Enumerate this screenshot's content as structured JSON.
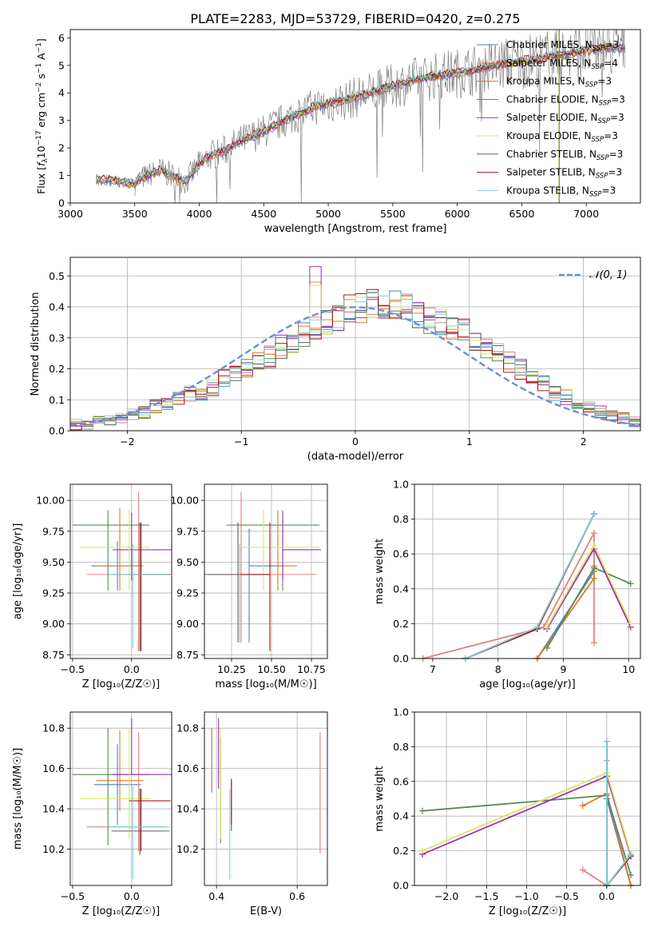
{
  "figure_title": "PLATE=2283, MJD=53729, FIBERID=0420, z=0.275",
  "colors": {
    "Chabrier MILES": "#4a7fd4",
    "Salpeter MILES": "#e08080",
    "Kroupa MILES": "#e07a20",
    "Chabrier ELODIE": "#5a8a5a",
    "Salpeter ELODIE": "#9b30b8",
    "Kroupa ELODIE": "#d8e860",
    "Chabrier STELIB": "#606060",
    "Salpeter STELIB": "#b01010",
    "Kroupa STELIB": "#7fd0d8",
    "data": "#808080",
    "normal": "#6a8fd8",
    "grid": "#b0b0b0"
  },
  "chart_data": [
    {
      "id": "spectrum",
      "type": "line",
      "title": "PLATE=2283, MJD=53729, FIBERID=0420, z=0.275",
      "xlabel": "wavelength [Angstrom, rest frame]",
      "ylabel_parts": [
        "Flux [",
        "f",
        "λ",
        "10",
        "−17",
        " erg cm",
        "−2",
        " s",
        "−1",
        " A",
        "−1",
        "]"
      ],
      "xlim": [
        3000,
        7420
      ],
      "ylim": [
        0,
        6.3
      ],
      "xticks": [
        3000,
        3500,
        4000,
        4500,
        5000,
        5500,
        6000,
        6500,
        7000
      ],
      "yticks": [
        0,
        1,
        2,
        3,
        4,
        5,
        6
      ],
      "legend": [
        {
          "name": "Chabrier MILES",
          "nssp": "3"
        },
        {
          "name": "Salpeter MILES",
          "nssp": "4"
        },
        {
          "name": "Kroupa MILES",
          "nssp": "3"
        },
        {
          "name": "Chabrier ELODIE",
          "nssp": "3"
        },
        {
          "name": "Salpeter ELODIE",
          "nssp": "3"
        },
        {
          "name": "Kroupa ELODIE",
          "nssp": "3"
        },
        {
          "name": "Chabrier STELIB",
          "nssp": "3"
        },
        {
          "name": "Salpeter STELIB",
          "nssp": "3"
        },
        {
          "name": "Kroupa STELIB",
          "nssp": "3"
        }
      ],
      "legend_prefix": "N",
      "legend_sub": "SSP",
      "legend_placement": "top-right",
      "model_continuum": {
        "x": [
          3200,
          3280,
          3500,
          3550,
          3700,
          3800,
          3900,
          4000,
          4100,
          4200,
          4300,
          4500,
          4700,
          4900,
          5100,
          5300,
          5500,
          5700,
          5900,
          6100,
          6300,
          6500,
          6700,
          6900,
          7100,
          7300
        ],
        "y": [
          0.85,
          0.85,
          0.7,
          0.9,
          1.2,
          0.95,
          0.8,
          1.4,
          1.75,
          1.9,
          2.2,
          2.6,
          3.1,
          3.5,
          3.7,
          3.95,
          4.25,
          4.5,
          4.65,
          4.8,
          5.0,
          5.15,
          5.3,
          5.45,
          5.6,
          5.65
        ]
      },
      "observed_range": [
        3500,
        7300
      ],
      "observed_noise_amplitude": 0.9,
      "vertical_line_x": 6790,
      "vertical_line_color": "#808000",
      "grid": false
    },
    {
      "id": "residuals",
      "type": "histogram",
      "xlabel": "(data-model)/error",
      "ylabel": "Normed distribution",
      "xlim": [
        -2.5,
        2.5
      ],
      "ylim": [
        0,
        0.56
      ],
      "xticks": [
        -2,
        -1,
        0,
        1,
        2
      ],
      "yticks": [
        0.0,
        0.1,
        0.2,
        0.3,
        0.4,
        0.5
      ],
      "bin_width": 0.1,
      "bin_start": -2.5,
      "reference_values": [
        0.02,
        0.02,
        0.03,
        0.03,
        0.04,
        0.05,
        0.06,
        0.08,
        0.09,
        0.1,
        0.12,
        0.12,
        0.14,
        0.17,
        0.18,
        0.2,
        0.22,
        0.24,
        0.27,
        0.29,
        0.31,
        0.33,
        0.35,
        0.37,
        0.39,
        0.4,
        0.41,
        0.4,
        0.41,
        0.4,
        0.38,
        0.36,
        0.35,
        0.33,
        0.32,
        0.3,
        0.27,
        0.25,
        0.22,
        0.2,
        0.17,
        0.15,
        0.12,
        0.11,
        0.09,
        0.08,
        0.06,
        0.05,
        0.04,
        0.03
      ],
      "peaks": {
        "Salpeter ELODIE": 0.53,
        "Salpeter MILES": 0.48,
        "Kroupa ELODIE": 0.47
      },
      "normal_label": "𝒩(0, 1)",
      "legend_placement": "top-right",
      "grid": true
    },
    {
      "id": "age_vs_Z",
      "type": "errorbar",
      "xlabel": "Z [log₁₀(Z/Z☉)]",
      "ylabel": "age  [log₁₀(age/yr)]",
      "xlim": [
        -0.52,
        0.34
      ],
      "ylim": [
        8.72,
        10.13
      ],
      "xticks": [
        -0.5,
        0.0
      ],
      "yticks": [
        8.75,
        9.0,
        9.25,
        9.5,
        9.75,
        10.0
      ],
      "grid": true,
      "points": [
        {
          "series": "Chabrier MILES",
          "x": -0.12,
          "xerr": [
            0.22,
            0.2
          ],
          "y": 9.47,
          "yerr": [
            0.2,
            0.2
          ]
        },
        {
          "series": "Salpeter MILES",
          "x": 0.06,
          "xerr": [
            0.44,
            0.23
          ],
          "y": 9.4,
          "yerr": [
            0.62,
            0.67
          ]
        },
        {
          "series": "Kroupa MILES",
          "x": -0.1,
          "xerr": [
            0.2,
            0.2
          ],
          "y": 9.47,
          "yerr": [
            0.2,
            0.47
          ]
        },
        {
          "series": "Chabrier ELODIE",
          "x": -0.2,
          "xerr": [
            0.3,
            0.35
          ],
          "y": 9.8,
          "yerr": [
            0.53,
            0.12
          ]
        },
        {
          "series": "Salpeter ELODIE",
          "x": 0.0,
          "xerr": [
            0.16,
            0.38
          ],
          "y": 9.6,
          "yerr": [
            0.25,
            0.3
          ]
        },
        {
          "series": "Kroupa ELODIE",
          "x": -0.02,
          "xerr": [
            0.42,
            0.18
          ],
          "y": 9.62,
          "yerr": [
            0.35,
            0.3
          ]
        },
        {
          "series": "Chabrier STELIB",
          "x": 0.07,
          "xerr": [
            0.24,
            0.25
          ],
          "y": 9.4,
          "yerr": [
            0.62,
            0.42
          ]
        },
        {
          "series": "Salpeter STELIB",
          "x": 0.08,
          "xerr": [
            0.1,
            0.25
          ],
          "y": 9.4,
          "yerr": [
            0.62,
            0.42
          ]
        },
        {
          "series": "Kroupa STELIB",
          "x": 0.01,
          "xerr": [
            0.2,
            0.31
          ],
          "y": 9.4,
          "yerr": [
            0.6,
            0.25
          ]
        }
      ]
    },
    {
      "id": "age_vs_mass",
      "type": "errorbar",
      "xlabel": "mass [log₁₀(M/M☉)]",
      "ylabel": "",
      "xlim": [
        10.08,
        10.85
      ],
      "ylim": [
        8.72,
        10.13
      ],
      "xticks": [
        10.25,
        10.5,
        10.75
      ],
      "yticks": [
        8.75,
        9.0,
        9.25,
        9.5,
        9.75,
        10.0
      ],
      "grid": true,
      "points": [
        {
          "series": "Chabrier MILES",
          "x": 10.36,
          "xerr": [
            0.0,
            0.22
          ],
          "y": 9.47,
          "yerr": [
            0.62,
            0.3
          ]
        },
        {
          "series": "Salpeter MILES",
          "x": 10.31,
          "xerr": [
            0.21,
            0.47
          ],
          "y": 9.4,
          "yerr": [
            0.55,
            0.67
          ]
        },
        {
          "series": "Kroupa MILES",
          "x": 10.54,
          "xerr": [
            0.0,
            0.12
          ],
          "y": 9.47,
          "yerr": [
            0.2,
            0.45
          ]
        },
        {
          "series": "Chabrier ELODIE",
          "x": 10.57,
          "xerr": [
            0.35,
            0.23
          ],
          "y": 9.8,
          "yerr": [
            0.53,
            0.12
          ]
        },
        {
          "series": "Salpeter ELODIE",
          "x": 10.57,
          "xerr": [
            0.0,
            0.24
          ],
          "y": 9.6,
          "yerr": [
            0.25,
            0.3
          ]
        },
        {
          "series": "Kroupa ELODIE",
          "x": 10.45,
          "xerr": [
            0.15,
            0.35
          ],
          "y": 9.62,
          "yerr": [
            0.35,
            0.3
          ]
        },
        {
          "series": "Chabrier STELIB",
          "x": 10.29,
          "xerr": [
            0.21,
            0.2
          ],
          "y": 9.4,
          "yerr": [
            0.55,
            0.42
          ]
        },
        {
          "series": "Salpeter STELIB",
          "x": 10.49,
          "xerr": [
            0.2,
            0.0
          ],
          "y": 9.4,
          "yerr": [
            0.62,
            0.42
          ]
        },
        {
          "series": "Kroupa STELIB",
          "x": 10.3,
          "xerr": [
            0.0,
            0.0
          ],
          "y": 9.4,
          "yerr": [
            0.55,
            0.25
          ]
        }
      ]
    },
    {
      "id": "weight_vs_age",
      "type": "line",
      "xlabel": "age  [log₁₀(age/yr)]",
      "ylabel": "mass weight",
      "xlim": [
        6.72,
        10.18
      ],
      "ylim": [
        0,
        1.0
      ],
      "xticks": [
        7,
        8,
        9,
        10
      ],
      "yticks": [
        0.0,
        0.2,
        0.4,
        0.6,
        0.8,
        1.0
      ],
      "grid": true,
      "series": [
        {
          "name": "Chabrier MILES",
          "x": [
            8.6,
            9.47
          ],
          "y": [
            0.0,
            0.5
          ]
        },
        {
          "name": "Salpeter MILES",
          "x": [
            6.85,
            8.7,
            9.47,
            9.47
          ],
          "y": [
            0.0,
            0.18,
            0.72,
            0.09
          ]
        },
        {
          "name": "Kroupa MILES",
          "x": [
            8.6,
            9.47,
            9.47
          ],
          "y": [
            0.0,
            0.46,
            0.53
          ]
        },
        {
          "name": "Chabrier ELODIE",
          "x": [
            8.75,
            9.47,
            10.03
          ],
          "y": [
            0.06,
            0.52,
            0.43
          ]
        },
        {
          "name": "Salpeter ELODIE",
          "x": [
            8.75,
            9.47,
            10.03
          ],
          "y": [
            0.17,
            0.63,
            0.18
          ]
        },
        {
          "name": "Kroupa ELODIE",
          "x": [
            8.75,
            9.47,
            10.03
          ],
          "y": [
            0.18,
            0.65,
            0.2
          ]
        },
        {
          "name": "Chabrier STELIB",
          "x": [
            7.5,
            8.6,
            9.47
          ],
          "y": [
            0.0,
            0.17,
            0.83
          ]
        },
        {
          "name": "Salpeter STELIB",
          "x": [
            7.5,
            8.6,
            9.47
          ],
          "y": [
            0.0,
            0.17,
            0.83
          ]
        },
        {
          "name": "Kroupa STELIB",
          "x": [
            7.5,
            8.6,
            9.47
          ],
          "y": [
            0.0,
            0.18,
            0.83
          ]
        }
      ]
    },
    {
      "id": "mass_vs_Z",
      "type": "errorbar",
      "xlabel": "Z [log₁₀(Z/Z☉)]",
      "ylabel": "mass [log₁₀(M/M☉)]",
      "xlim": [
        -0.52,
        0.34
      ],
      "ylim": [
        10.02,
        10.88
      ],
      "xticks": [
        -0.5,
        0.0
      ],
      "yticks": [
        10.2,
        10.4,
        10.6,
        10.8
      ],
      "grid": true,
      "points": [
        {
          "series": "Chabrier MILES",
          "x": -0.12,
          "xerr": [
            0.2,
            0.2
          ],
          "y": 10.52,
          "yerr": [
            0.2,
            0.2
          ]
        },
        {
          "series": "Salpeter MILES",
          "x": 0.06,
          "xerr": [
            0.44,
            0.23
          ],
          "y": 10.31,
          "yerr": [
            0.12,
            0.47
          ]
        },
        {
          "series": "Kroupa MILES",
          "x": -0.1,
          "xerr": [
            0.2,
            0.2
          ],
          "y": 10.54,
          "yerr": [
            0.15,
            0.25
          ]
        },
        {
          "series": "Chabrier ELODIE",
          "x": -0.2,
          "xerr": [
            0.3,
            0.35
          ],
          "y": 10.57,
          "yerr": [
            0.35,
            0.23
          ]
        },
        {
          "series": "Salpeter ELODIE",
          "x": 0.0,
          "xerr": [
            0.16,
            0.38
          ],
          "y": 10.57,
          "yerr": [
            0.0,
            0.28
          ]
        },
        {
          "series": "Kroupa ELODIE",
          "x": -0.02,
          "xerr": [
            0.42,
            0.18
          ],
          "y": 10.45,
          "yerr": [
            0.2,
            0.35
          ]
        },
        {
          "series": "Chabrier STELIB",
          "x": 0.07,
          "xerr": [
            0.24,
            0.25
          ],
          "y": 10.29,
          "yerr": [
            0.12,
            0.21
          ]
        },
        {
          "series": "Salpeter STELIB",
          "x": 0.08,
          "xerr": [
            0.1,
            0.25
          ],
          "y": 10.44,
          "yerr": [
            0.25,
            0.06
          ]
        },
        {
          "series": "Kroupa STELIB",
          "x": 0.01,
          "xerr": [
            0.2,
            0.31
          ],
          "y": 10.31,
          "yerr": [
            0.26,
            0.2
          ]
        }
      ]
    },
    {
      "id": "mass_vs_EBV",
      "type": "errorbar",
      "xlabel": "E(B-V)",
      "ylabel": "",
      "xlim": [
        0.37,
        0.675
      ],
      "ylim": [
        10.02,
        10.88
      ],
      "xticks": [
        0.4,
        0.6
      ],
      "yticks": [
        10.2,
        10.4,
        10.6,
        10.8
      ],
      "grid": true,
      "points": [
        {
          "series": "Chabrier MILES",
          "x": 0.388,
          "y": 10.6,
          "yerr": [
            0.12,
            0.2
          ]
        },
        {
          "series": "Salpeter MILES",
          "x": 0.657,
          "y": 10.5,
          "yerr": [
            0.32,
            0.28
          ]
        },
        {
          "series": "Kroupa MILES",
          "x": 0.388,
          "y": 10.65,
          "yerr": [
            0.15,
            0.14
          ]
        },
        {
          "series": "Chabrier ELODIE",
          "x": 0.41,
          "y": 10.5,
          "yerr": [
            0.27,
            0.25
          ]
        },
        {
          "series": "Salpeter ELODIE",
          "x": 0.405,
          "y": 10.6,
          "yerr": [
            0.1,
            0.25
          ]
        },
        {
          "series": "Kroupa ELODIE",
          "x": 0.41,
          "y": 10.45,
          "yerr": [
            0.2,
            0.35
          ]
        },
        {
          "series": "Chabrier STELIB",
          "x": 0.437,
          "y": 10.4,
          "yerr": [
            0.11,
            0.14
          ]
        },
        {
          "series": "Salpeter STELIB",
          "x": 0.437,
          "y": 10.44,
          "yerr": [
            0.12,
            0.11
          ]
        },
        {
          "series": "Kroupa STELIB",
          "x": 0.433,
          "y": 10.3,
          "yerr": [
            0.25,
            0.2
          ]
        }
      ]
    },
    {
      "id": "weight_vs_Z",
      "type": "line",
      "xlabel": "Z [log₁₀(Z/Z☉)]",
      "ylabel": "mass weight",
      "xlim": [
        -2.4,
        0.42
      ],
      "ylim": [
        0,
        1.0
      ],
      "xticks": [
        -2.0,
        -1.5,
        -1.0,
        -0.5,
        0.0
      ],
      "yticks": [
        0.0,
        0.2,
        0.4,
        0.6,
        0.8,
        1.0
      ],
      "grid": true,
      "series": [
        {
          "name": "Chabrier MILES",
          "x": [
            0.0,
            0.0,
            0.3
          ],
          "y": [
            0.0,
            0.5,
            0.0
          ]
        },
        {
          "name": "Salpeter MILES",
          "x": [
            -0.3,
            0.0,
            0.0,
            0.0
          ],
          "y": [
            0.09,
            0.0,
            0.72,
            0.0
          ]
        },
        {
          "name": "Kroupa MILES",
          "x": [
            -0.3,
            0.0,
            0.3
          ],
          "y": [
            0.46,
            0.53,
            0.0
          ]
        },
        {
          "name": "Chabrier ELODIE",
          "x": [
            -2.3,
            0.0,
            0.3
          ],
          "y": [
            0.43,
            0.52,
            0.06
          ]
        },
        {
          "name": "Salpeter ELODIE",
          "x": [
            -2.3,
            0.0,
            0.3
          ],
          "y": [
            0.18,
            0.63,
            0.17
          ]
        },
        {
          "name": "Kroupa ELODIE",
          "x": [
            -2.3,
            0.0,
            0.3
          ],
          "y": [
            0.2,
            0.65,
            0.18
          ]
        },
        {
          "name": "Chabrier STELIB",
          "x": [
            0.0,
            0.0,
            0.3
          ],
          "y": [
            0.83,
            0.0,
            0.17
          ]
        },
        {
          "name": "Salpeter STELIB",
          "x": [
            0.0,
            0.0,
            0.3
          ],
          "y": [
            0.83,
            0.0,
            0.17
          ]
        },
        {
          "name": "Kroupa STELIB",
          "x": [
            0.0,
            0.0,
            0.3
          ],
          "y": [
            0.83,
            0.0,
            0.18
          ]
        }
      ]
    }
  ]
}
